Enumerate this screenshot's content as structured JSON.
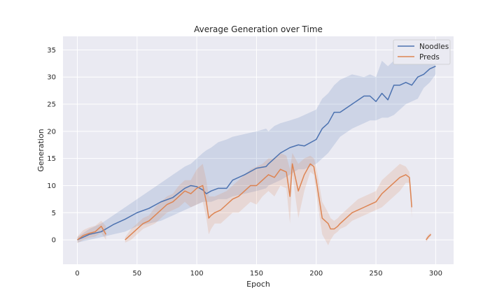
{
  "chart_data": {
    "type": "line",
    "title": "Average Generation over Time",
    "xlabel": "Epoch",
    "ylabel": "Generation",
    "xlim": [
      -12,
      315
    ],
    "ylim": [
      -4.5,
      37.5
    ],
    "xticks": [
      0,
      50,
      100,
      150,
      200,
      250,
      300
    ],
    "yticks": [
      0,
      5,
      10,
      15,
      20,
      25,
      30,
      35
    ],
    "grid": true,
    "legend_position": "top-right",
    "colors": {
      "background": "#eaeaf2",
      "grid": "#ffffff",
      "noodles": "#4c72b0",
      "preds": "#dd8452"
    },
    "series": [
      {
        "name": "Noodles",
        "x": [
          0,
          10,
          20,
          30,
          40,
          50,
          60,
          70,
          80,
          90,
          95,
          100,
          105,
          108,
          112,
          118,
          125,
          130,
          140,
          150,
          158,
          160,
          165,
          170,
          178,
          185,
          190,
          200,
          205,
          210,
          215,
          220,
          230,
          240,
          245,
          250,
          255,
          260,
          265,
          270,
          275,
          280,
          285,
          290,
          295,
          300
        ],
        "y": [
          0,
          1,
          1.5,
          2.8,
          3.8,
          5,
          5.8,
          7,
          7.8,
          9.5,
          10,
          9.8,
          9.2,
          8.5,
          9.0,
          9.5,
          9.5,
          11,
          12,
          13.2,
          13.5,
          14,
          15,
          16,
          17,
          17.5,
          17.3,
          18.5,
          20.5,
          21.5,
          23.5,
          23.5,
          25,
          26.5,
          26.5,
          25.5,
          27,
          25.8,
          28.5,
          28.5,
          29,
          28.5,
          30,
          30.5,
          31.5,
          32
        ],
        "upper": [
          0.5,
          2,
          3,
          4.5,
          6,
          7.5,
          9,
          10.5,
          12,
          13.5,
          14,
          15,
          16,
          16.5,
          17,
          18,
          18.5,
          19,
          19.5,
          20,
          20.5,
          20,
          21,
          21.5,
          22,
          22.5,
          23,
          24,
          26,
          27,
          28.5,
          29.5,
          30.5,
          30,
          30.5,
          30,
          33,
          32,
          33,
          33,
          33,
          32.5,
          33,
          32.5,
          33,
          33
        ],
        "lower": [
          -0.5,
          0,
          0.5,
          1,
          1.5,
          2.5,
          3,
          3.5,
          4.5,
          5.5,
          6,
          6.5,
          7,
          7,
          7,
          7.5,
          7.5,
          8,
          8.5,
          9,
          9.5,
          10,
          10.5,
          11,
          12,
          13,
          13,
          14,
          15,
          16,
          17.5,
          19,
          20.5,
          21.5,
          22,
          22,
          22.5,
          22.5,
          23,
          24,
          25,
          25.5,
          26,
          28,
          29,
          30.5
        ]
      },
      {
        "name": "Preds",
        "segments": [
          {
            "x": [
              0,
              5,
              10,
              15,
              20,
              24
            ],
            "y": [
              0,
              0.8,
              1.2,
              1.5,
              2.5,
              1.0
            ],
            "upper": [
              0.6,
              1.8,
              2.3,
              2.6,
              3.5,
              2.5
            ],
            "lower": [
              -0.6,
              0,
              0.4,
              0.6,
              1.3,
              0
            ]
          },
          {
            "x": [
              40,
              45,
              50,
              55,
              60,
              65,
              70,
              75,
              80,
              85,
              90,
              95,
              100,
              105,
              108,
              110,
              112,
              115,
              120,
              125,
              130,
              135,
              140,
              145,
              150,
              155,
              160,
              165,
              170,
              175,
              178,
              180,
              185,
              190,
              195,
              198,
              200,
              205,
              210,
              212,
              215,
              218,
              220,
              225,
              230,
              235,
              240,
              245,
              250,
              255,
              260,
              265,
              270,
              275,
              278,
              280
            ],
            "y": [
              0,
              1,
              2,
              3,
              3.5,
              4.5,
              5.5,
              6.5,
              7,
              8,
              9,
              8.5,
              9.5,
              10,
              7,
              4,
              4.5,
              5,
              5.5,
              6.5,
              7.5,
              8,
              9,
              10,
              10,
              11,
              12,
              11.5,
              13,
              12.5,
              8,
              14,
              9,
              12,
              14,
              13.5,
              11,
              4,
              3,
              2,
              2,
              2.5,
              3,
              4,
              5,
              5.5,
              6,
              6.5,
              7,
              8.5,
              9.5,
              10.5,
              11.5,
              12,
              11.5,
              6
            ],
            "upper": [
              0.5,
              2,
              3,
              4,
              4.5,
              6,
              7,
              8,
              8.5,
              10,
              11,
              11,
              13,
              14,
              11,
              8,
              8,
              8,
              8.5,
              9,
              10,
              11,
              12,
              13,
              13.5,
              14,
              15,
              15,
              16,
              15.5,
              13,
              16,
              14,
              15,
              15.5,
              15,
              13.5,
              7,
              5,
              4,
              3.5,
              4,
              4.5,
              5.5,
              6.5,
              7.5,
              8,
              8.5,
              9,
              11,
              12,
              13,
              14,
              13.5,
              12.5,
              8
            ],
            "lower": [
              -0.5,
              0,
              1,
              2,
              2.5,
              3,
              4,
              5,
              5.5,
              6,
              7,
              6,
              6.5,
              7,
              4,
              1,
              2,
              3,
              3,
              4,
              5,
              5,
              6,
              7,
              6.5,
              8,
              9,
              8,
              10,
              9.5,
              3,
              12,
              4,
              9,
              12.5,
              12,
              8.5,
              1,
              -1,
              0,
              1,
              1.5,
              2,
              2.5,
              3.5,
              4,
              4.5,
              5,
              5.5,
              6,
              7,
              8,
              9,
              10.5,
              10.5,
              4
            ]
          },
          {
            "x": [
              292,
              294,
              296
            ],
            "y": [
              0,
              0.6,
              1.0
            ],
            "upper": [
              0.4,
              1.0,
              1.3
            ],
            "lower": [
              -0.4,
              0.2,
              0.7
            ]
          }
        ]
      }
    ]
  }
}
